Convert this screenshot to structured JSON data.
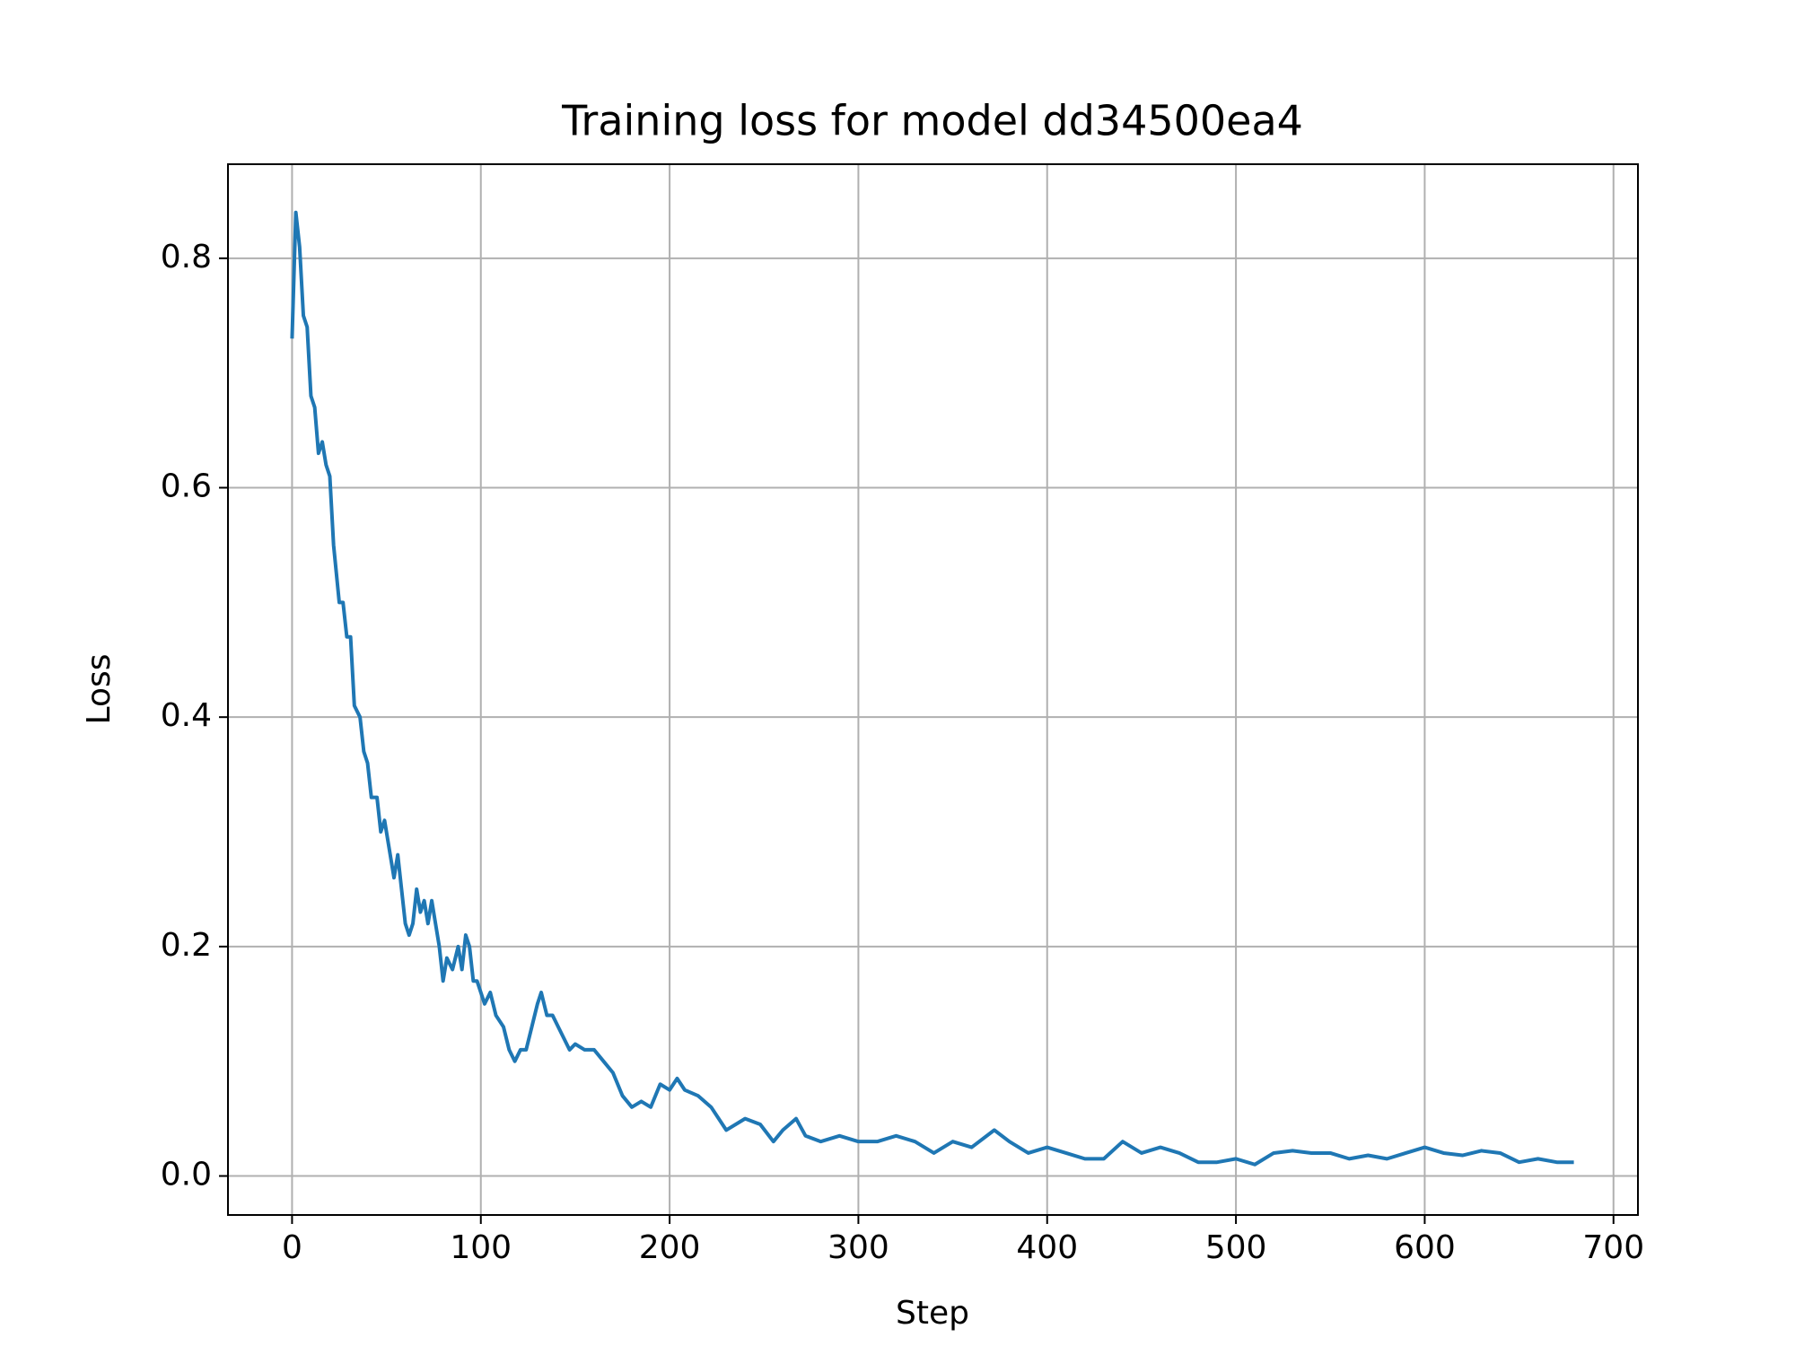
{
  "chart_data": {
    "type": "line",
    "title": "Training loss for model dd34500ea4",
    "x_label": "Step",
    "y_label": "Loss",
    "color": "#1f77b4",
    "grid": true,
    "xlim": [
      -33.95,
      712.95
    ],
    "ylim": [
      -0.034,
      0.882
    ],
    "xticks": [
      0,
      100,
      200,
      300,
      400,
      500,
      600,
      700
    ],
    "yticks": [
      {
        "value": 0,
        "label": "0.0"
      },
      0.2,
      0.4,
      0.6,
      0.8
    ],
    "x": [
      0,
      2,
      4,
      6,
      8,
      10,
      12,
      14,
      16,
      18,
      20,
      22,
      25,
      27,
      29,
      31,
      33,
      36,
      38,
      40,
      42,
      45,
      47,
      49,
      52,
      54,
      56,
      58,
      60,
      62,
      64,
      66,
      68,
      70,
      72,
      74,
      76,
      78,
      80,
      82,
      85,
      88,
      90,
      92,
      94,
      96,
      98,
      100,
      102,
      105,
      108,
      112,
      115,
      118,
      121,
      124,
      127,
      130,
      132,
      135,
      138,
      141,
      144,
      147,
      150,
      155,
      160,
      165,
      170,
      175,
      180,
      185,
      190,
      195,
      200,
      204,
      208,
      215,
      222,
      230,
      240,
      248,
      255,
      260,
      267,
      272,
      280,
      290,
      300,
      310,
      320,
      330,
      340,
      350,
      360,
      372,
      380,
      390,
      400,
      410,
      420,
      430,
      440,
      450,
      460,
      470,
      480,
      490,
      500,
      510,
      520,
      530,
      540,
      550,
      560,
      570,
      580,
      590,
      600,
      610,
      620,
      630,
      640,
      650,
      660,
      670,
      679
    ],
    "values": [
      0.73,
      0.84,
      0.81,
      0.75,
      0.74,
      0.68,
      0.67,
      0.63,
      0.64,
      0.62,
      0.61,
      0.55,
      0.5,
      0.5,
      0.47,
      0.47,
      0.41,
      0.4,
      0.37,
      0.36,
      0.33,
      0.33,
      0.3,
      0.31,
      0.28,
      0.26,
      0.28,
      0.25,
      0.22,
      0.21,
      0.22,
      0.25,
      0.23,
      0.24,
      0.22,
      0.24,
      0.22,
      0.2,
      0.17,
      0.19,
      0.18,
      0.2,
      0.18,
      0.21,
      0.2,
      0.17,
      0.17,
      0.16,
      0.15,
      0.16,
      0.14,
      0.13,
      0.11,
      0.1,
      0.11,
      0.11,
      0.13,
      0.15,
      0.16,
      0.14,
      0.14,
      0.13,
      0.12,
      0.11,
      0.115,
      0.11,
      0.11,
      0.1,
      0.09,
      0.07,
      0.06,
      0.065,
      0.06,
      0.08,
      0.075,
      0.085,
      0.075,
      0.07,
      0.06,
      0.04,
      0.05,
      0.045,
      0.03,
      0.04,
      0.05,
      0.035,
      0.03,
      0.035,
      0.03,
      0.03,
      0.035,
      0.03,
      0.02,
      0.03,
      0.025,
      0.04,
      0.03,
      0.02,
      0.025,
      0.02,
      0.015,
      0.015,
      0.03,
      0.02,
      0.025,
      0.02,
      0.012,
      0.012,
      0.015,
      0.01,
      0.02,
      0.022,
      0.02,
      0.02,
      0.015,
      0.018,
      0.015,
      0.02,
      0.025,
      0.02,
      0.018,
      0.022,
      0.02,
      0.012,
      0.015,
      0.012,
      0.012
    ]
  }
}
